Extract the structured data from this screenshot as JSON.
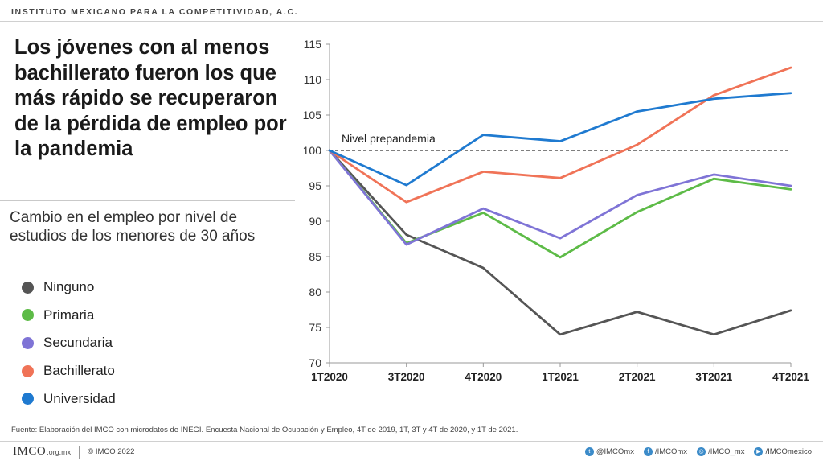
{
  "header": {
    "org": "INSTITUTO MEXICANO PARA LA COMPETITIVIDAD, A.C."
  },
  "title": "Los jóvenes con al menos bachillerato fueron los que más rápido se recuperaron de la pérdida de empleo por la pandemia",
  "subtitle": "Cambio en el empleo por nivel de estudios de los menores de 30 años",
  "chart_data": {
    "type": "line",
    "categories": [
      "1T2020",
      "3T2020",
      "4T2020",
      "1T2021",
      "2T2021",
      "3T2021",
      "4T2021"
    ],
    "ylim": [
      70,
      115
    ],
    "yticks": [
      70,
      75,
      80,
      85,
      90,
      95,
      100,
      105,
      110,
      115
    ],
    "grid": false,
    "reference_line": {
      "value": 100,
      "label": "Nivel prepandemia"
    },
    "legend_position": "left",
    "series": [
      {
        "name": "Ninguno",
        "color": "#555555",
        "values": [
          100,
          88.1,
          83.4,
          74.0,
          77.2,
          74.0,
          77.4
        ]
      },
      {
        "name": "Primaria",
        "color": "#5dbb47",
        "values": [
          100,
          86.9,
          91.2,
          84.9,
          91.3,
          96.0,
          94.5
        ]
      },
      {
        "name": "Secundaria",
        "color": "#7f74d6",
        "values": [
          100,
          86.7,
          91.8,
          87.6,
          93.7,
          96.6,
          95.0
        ]
      },
      {
        "name": "Bachillerato",
        "color": "#f07357",
        "values": [
          100,
          92.7,
          97.0,
          96.1,
          100.8,
          107.8,
          111.7
        ]
      },
      {
        "name": "Universidad",
        "color": "#1f7ad0",
        "values": [
          100,
          95.1,
          102.2,
          101.3,
          105.5,
          107.3,
          108.1
        ]
      }
    ]
  },
  "source": "Fuente: Elaboración del IMCO con microdatos de INEGI. Encuesta Nacional de Ocupación y Empleo, 4T de 2019, 1T, 3T y 4T de 2020, y 1T de 2021.",
  "footer": {
    "logo": "IMCO",
    "logo_suffix": ".org.mx",
    "copyright": "© IMCO 2022",
    "social": [
      {
        "icon": "twitter-icon",
        "glyph": "t",
        "handle": "@IMCOmx"
      },
      {
        "icon": "facebook-icon",
        "glyph": "f",
        "handle": "/IMCOmx"
      },
      {
        "icon": "instagram-icon",
        "glyph": "◎",
        "handle": "/IMCO_mx"
      },
      {
        "icon": "youtube-icon",
        "glyph": "▶",
        "handle": "/IMCOmexico"
      }
    ]
  }
}
